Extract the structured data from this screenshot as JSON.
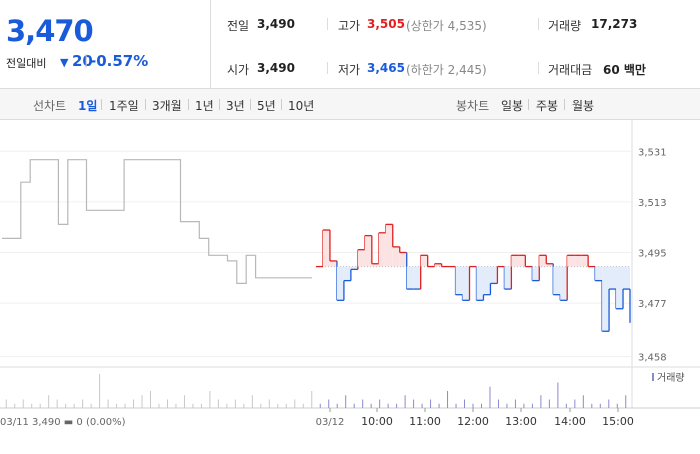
{
  "quote": {
    "price": "3,470",
    "change_label": "전일대비",
    "change_arrow": "▼",
    "change_value": "20",
    "change_sep": "|",
    "change_pct": "-0.57%"
  },
  "stats": {
    "prev_close_label": "전일",
    "prev_close": "3,490",
    "high_label": "고가",
    "high": "3,505",
    "upper_limit_note": "(상한가 4,535)",
    "volume_label": "거래량",
    "volume": "17,273",
    "open_label": "시가",
    "open": "3,490",
    "low_label": "저가",
    "low": "3,465",
    "lower_limit_note": "(하한가 2,445)",
    "amount_label": "거래대금",
    "amount": "60 백만"
  },
  "tabs": {
    "line_label": "선차트",
    "ranges": [
      "1일",
      "1주일",
      "3개월",
      "1년",
      "3년",
      "5년",
      "10년"
    ],
    "active_range": "1일",
    "candle_label": "봉차트",
    "candles": [
      "일봉",
      "주봉",
      "월봉"
    ]
  },
  "colors": {
    "up": "#e02020",
    "down": "#1a5bd9",
    "prev_day": "#b8b8b8",
    "accent": "#1a5bd9"
  },
  "chart_data": {
    "type": "line",
    "y_ticks": [
      3458,
      3477,
      3495,
      3513,
      3531
    ],
    "y_tick_labels": [
      "3,458",
      "3,477",
      "3,495",
      "3,513",
      "3,531"
    ],
    "ylim": [
      3455,
      3535
    ],
    "baseline": 3490,
    "volume_legend": "거래량",
    "prev_day_info": "03/11  3,490 ▬ 0 (0.00%)",
    "x_labels": [
      "03/12",
      "10:00",
      "11:00",
      "12:00",
      "13:00",
      "14:00",
      "15:00"
    ],
    "prev_day_series": [
      3500,
      3500,
      3520,
      3528,
      3528,
      3528,
      3505,
      3528,
      3528,
      3510,
      3510,
      3510,
      3510,
      3528,
      3528,
      3528,
      3528,
      3528,
      3528,
      3506,
      3506,
      3500,
      3494,
      3494,
      3492,
      3484,
      3494,
      3486,
      3486,
      3486,
      3486,
      3486,
      3486,
      3486
    ],
    "today_series": [
      3490,
      3503,
      3492,
      3478,
      3485,
      3489,
      3496,
      3501,
      3491,
      3502,
      3505,
      3497,
      3495,
      3482,
      3482,
      3494,
      3490,
      3491,
      3490,
      3490,
      3480,
      3478,
      3490,
      3478,
      3480,
      3484,
      3490,
      3482,
      3494,
      3494,
      3490,
      3485,
      3494,
      3491,
      3480,
      3478,
      3494,
      3494,
      3494,
      3490,
      3485,
      3467,
      3482,
      3475,
      3482,
      3470
    ],
    "volumes": [
      2,
      1,
      2,
      1,
      1,
      3,
      2,
      1,
      1,
      2,
      1,
      8,
      2,
      1,
      1,
      2,
      3,
      4,
      1,
      2,
      1,
      3,
      1,
      1,
      4,
      2,
      1,
      2,
      1,
      3,
      1,
      2,
      1,
      1,
      2,
      1,
      4,
      1,
      2,
      1,
      3,
      1,
      2,
      1,
      2,
      1,
      1,
      3,
      2,
      1,
      2,
      1,
      4,
      1,
      2,
      1,
      1,
      5,
      2,
      1,
      2,
      1,
      1,
      3,
      2,
      6,
      1,
      2,
      3,
      1,
      1,
      2,
      1,
      3
    ]
  }
}
